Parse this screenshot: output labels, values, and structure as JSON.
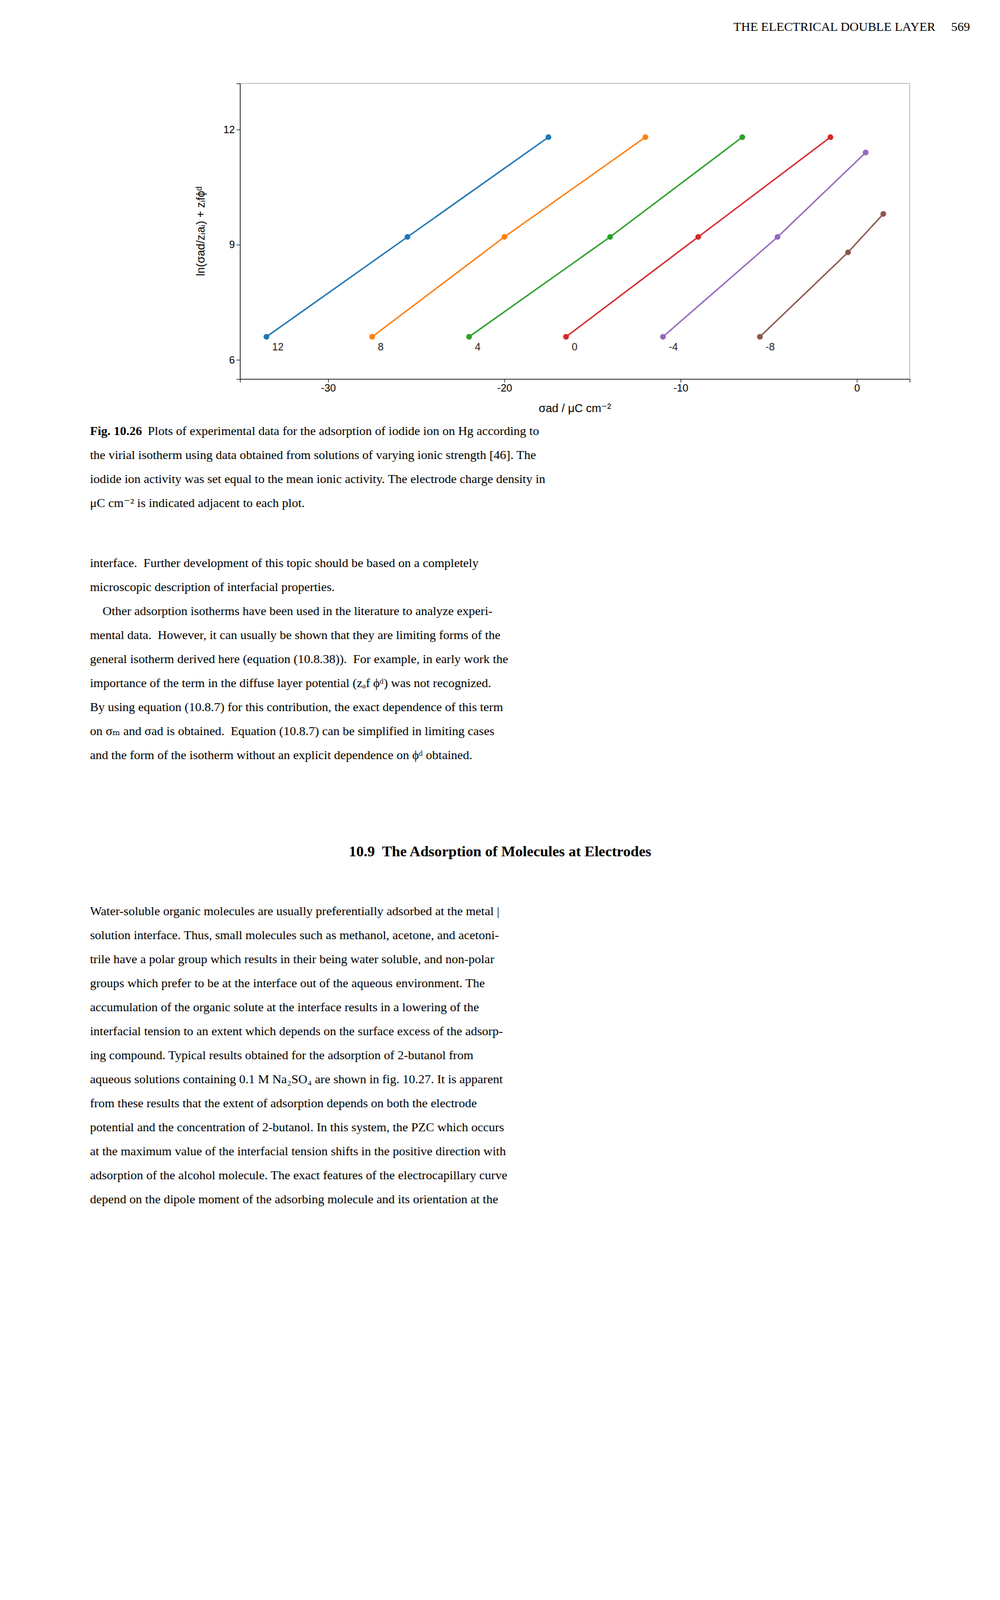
{
  "page_header": "THE ELECTRICAL DOUBLE LAYER     569",
  "caption_label": "Fig. 10.26",
  "caption_lines": [
    "Plots of experimental data for the adsorption of iodide ion on Hg according to",
    "the virial isotherm using data obtained from solutions of varying ionic strength [46]. The",
    "iodide ion activity was set equal to the mean ionic activity. The electrode charge density in",
    "μC cm⁻² is indicated adjacent to each plot."
  ],
  "body_lines": [
    "interface.  Further development of this topic should be based on a completely",
    "microscopic description of interfacial properties.",
    "    Other adsorption isotherms have been used in the literature to analyze experi-",
    "mental data.  However, it can usually be shown that they are limiting forms of the",
    "general isotherm derived here (equation (10.8.38)).  For example, in early work the",
    "importance of the term in the diffuse layer potential (zₐf ϕᵈ) was not recognized.",
    "By using equation (10.8.7) for this contribution, the exact dependence of this term",
    "on σₘ and σad is obtained.  Equation (10.8.7) can be simplified in limiting cases",
    "and the form of the isotherm without an explicit dependence on ϕᵈ obtained."
  ],
  "section_title": "10.9  The Adsorption of Molecules at Electrodes",
  "section_lines": [
    "Water-soluble organic molecules are usually preferentially adsorbed at the metal |",
    "solution interface. Thus, small molecules such as methanol, acetone, and acetoni-",
    "trile have a polar group which results in their being water soluble, and non-polar",
    "groups which prefer to be at the interface out of the aqueous environment. The",
    "accumulation of the organic solute at the interface results in a lowering of the",
    "interfacial tension to an extent which depends on the surface excess of the adsorp-",
    "ing compound. Typical results obtained for the adsorption of 2-butanol from",
    "aqueous solutions containing 0.1 M Na₂SO₄ are shown in fig. 10.27. It is apparent",
    "from these results that the extent of adsorption depends on both the electrode",
    "potential and the concentration of 2-butanol. In this system, the PZC which occurs",
    "at the maximum value of the interfacial tension shifts in the positive direction with",
    "adsorption of the alcohol molecule. The exact features of the electrocapillary curve",
    "depend on the dipole moment of the adsorbing molecule and its orientation at the"
  ],
  "chart_data": {
    "type": "line",
    "marker": "circle",
    "grid": false,
    "x_label": "σad / μC cm⁻²",
    "y_label": "ln(σad/zᵢaᵢ) + zᵢfϕᵈ",
    "xlim": [
      -35,
      3
    ],
    "ylim": [
      5.5,
      13.2
    ],
    "xticks": [
      -30,
      -20,
      -10,
      0
    ],
    "yticks": [
      6,
      9,
      12
    ],
    "series": [
      {
        "name": "12",
        "x": [
          -33.5,
          -25.5,
          -17.5
        ],
        "values": [
          6.6,
          9.2,
          11.8
        ]
      },
      {
        "name": "8",
        "x": [
          -27.5,
          -20.0,
          -12.0
        ],
        "values": [
          6.6,
          9.2,
          11.8
        ]
      },
      {
        "name": "4",
        "x": [
          -22.0,
          -14.0,
          -6.5
        ],
        "values": [
          6.6,
          9.2,
          11.8
        ]
      },
      {
        "name": "0",
        "x": [
          -16.5,
          -9.0,
          -1.5
        ],
        "values": [
          6.6,
          9.2,
          11.8
        ]
      },
      {
        "name": "-4",
        "x": [
          -11.0,
          -4.5,
          0.5
        ],
        "values": [
          6.6,
          9.2,
          11.4
        ]
      },
      {
        "name": "-8",
        "x": [
          -5.5,
          -0.5,
          1.5
        ],
        "values": [
          6.6,
          8.8,
          9.8
        ]
      }
    ]
  }
}
